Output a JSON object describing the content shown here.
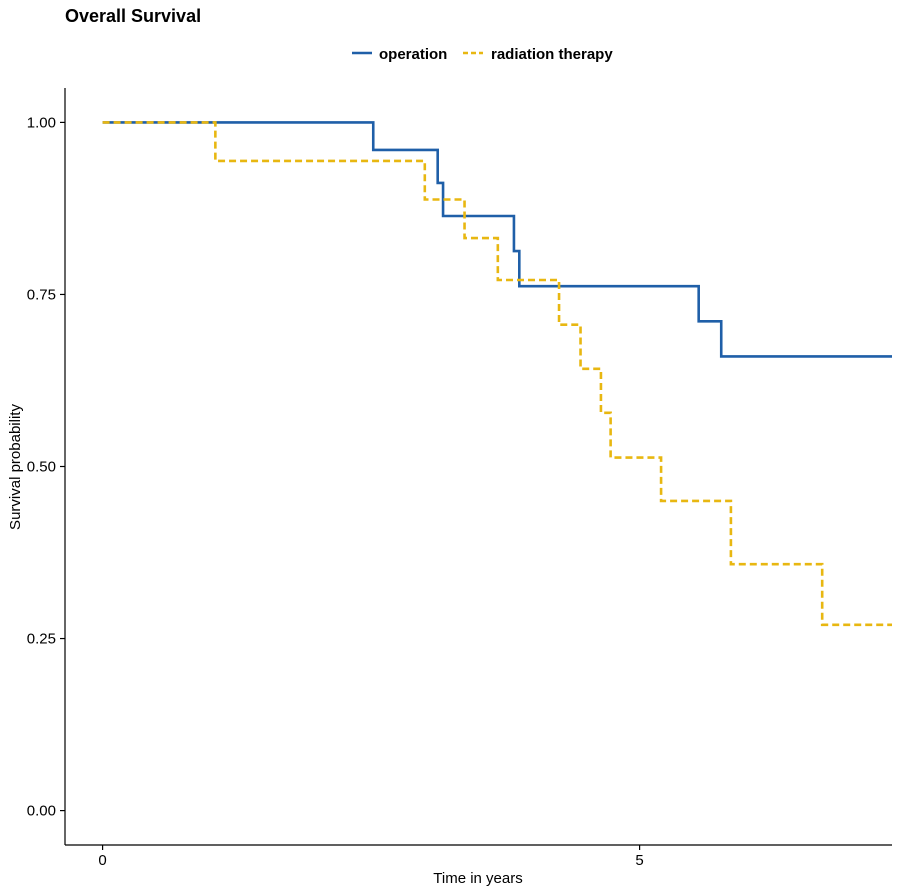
{
  "chart_data": {
    "type": "line",
    "subtype": "step",
    "title": "Overall Survival",
    "xlabel": "Time in years",
    "ylabel": "Survival probability",
    "xlim": [
      -0.35,
      7.35
    ],
    "ylim": [
      -0.05,
      1.05
    ],
    "x_ticks": [
      0,
      5
    ],
    "x_tick_labels": [
      "0",
      "5"
    ],
    "y_ticks": [
      0.0,
      0.25,
      0.5,
      0.75,
      1.0
    ],
    "y_tick_labels": [
      "0.00",
      "0.25",
      "0.50",
      "0.75",
      "1.00"
    ],
    "grid": false,
    "legend_position": "top",
    "series": [
      {
        "name": "operation",
        "color": "#1f5fa8",
        "dash": "solid",
        "x": [
          0.0,
          2.52,
          3.12,
          3.17,
          3.83,
          3.88,
          5.55,
          5.76,
          7.35
        ],
        "y": [
          1.0,
          0.96,
          0.912,
          0.864,
          0.813,
          0.762,
          0.711,
          0.66,
          0.66
        ]
      },
      {
        "name": "radiation therapy",
        "color": "#e8b711",
        "dash": "dashed",
        "x": [
          0.0,
          1.05,
          3.0,
          3.37,
          3.68,
          4.25,
          4.45,
          4.64,
          4.73,
          5.2,
          5.85,
          6.7,
          7.35
        ],
        "y": [
          1.0,
          0.944,
          0.888,
          0.832,
          0.771,
          0.706,
          0.642,
          0.578,
          0.513,
          0.45,
          0.358,
          0.27,
          0.27
        ]
      }
    ]
  }
}
